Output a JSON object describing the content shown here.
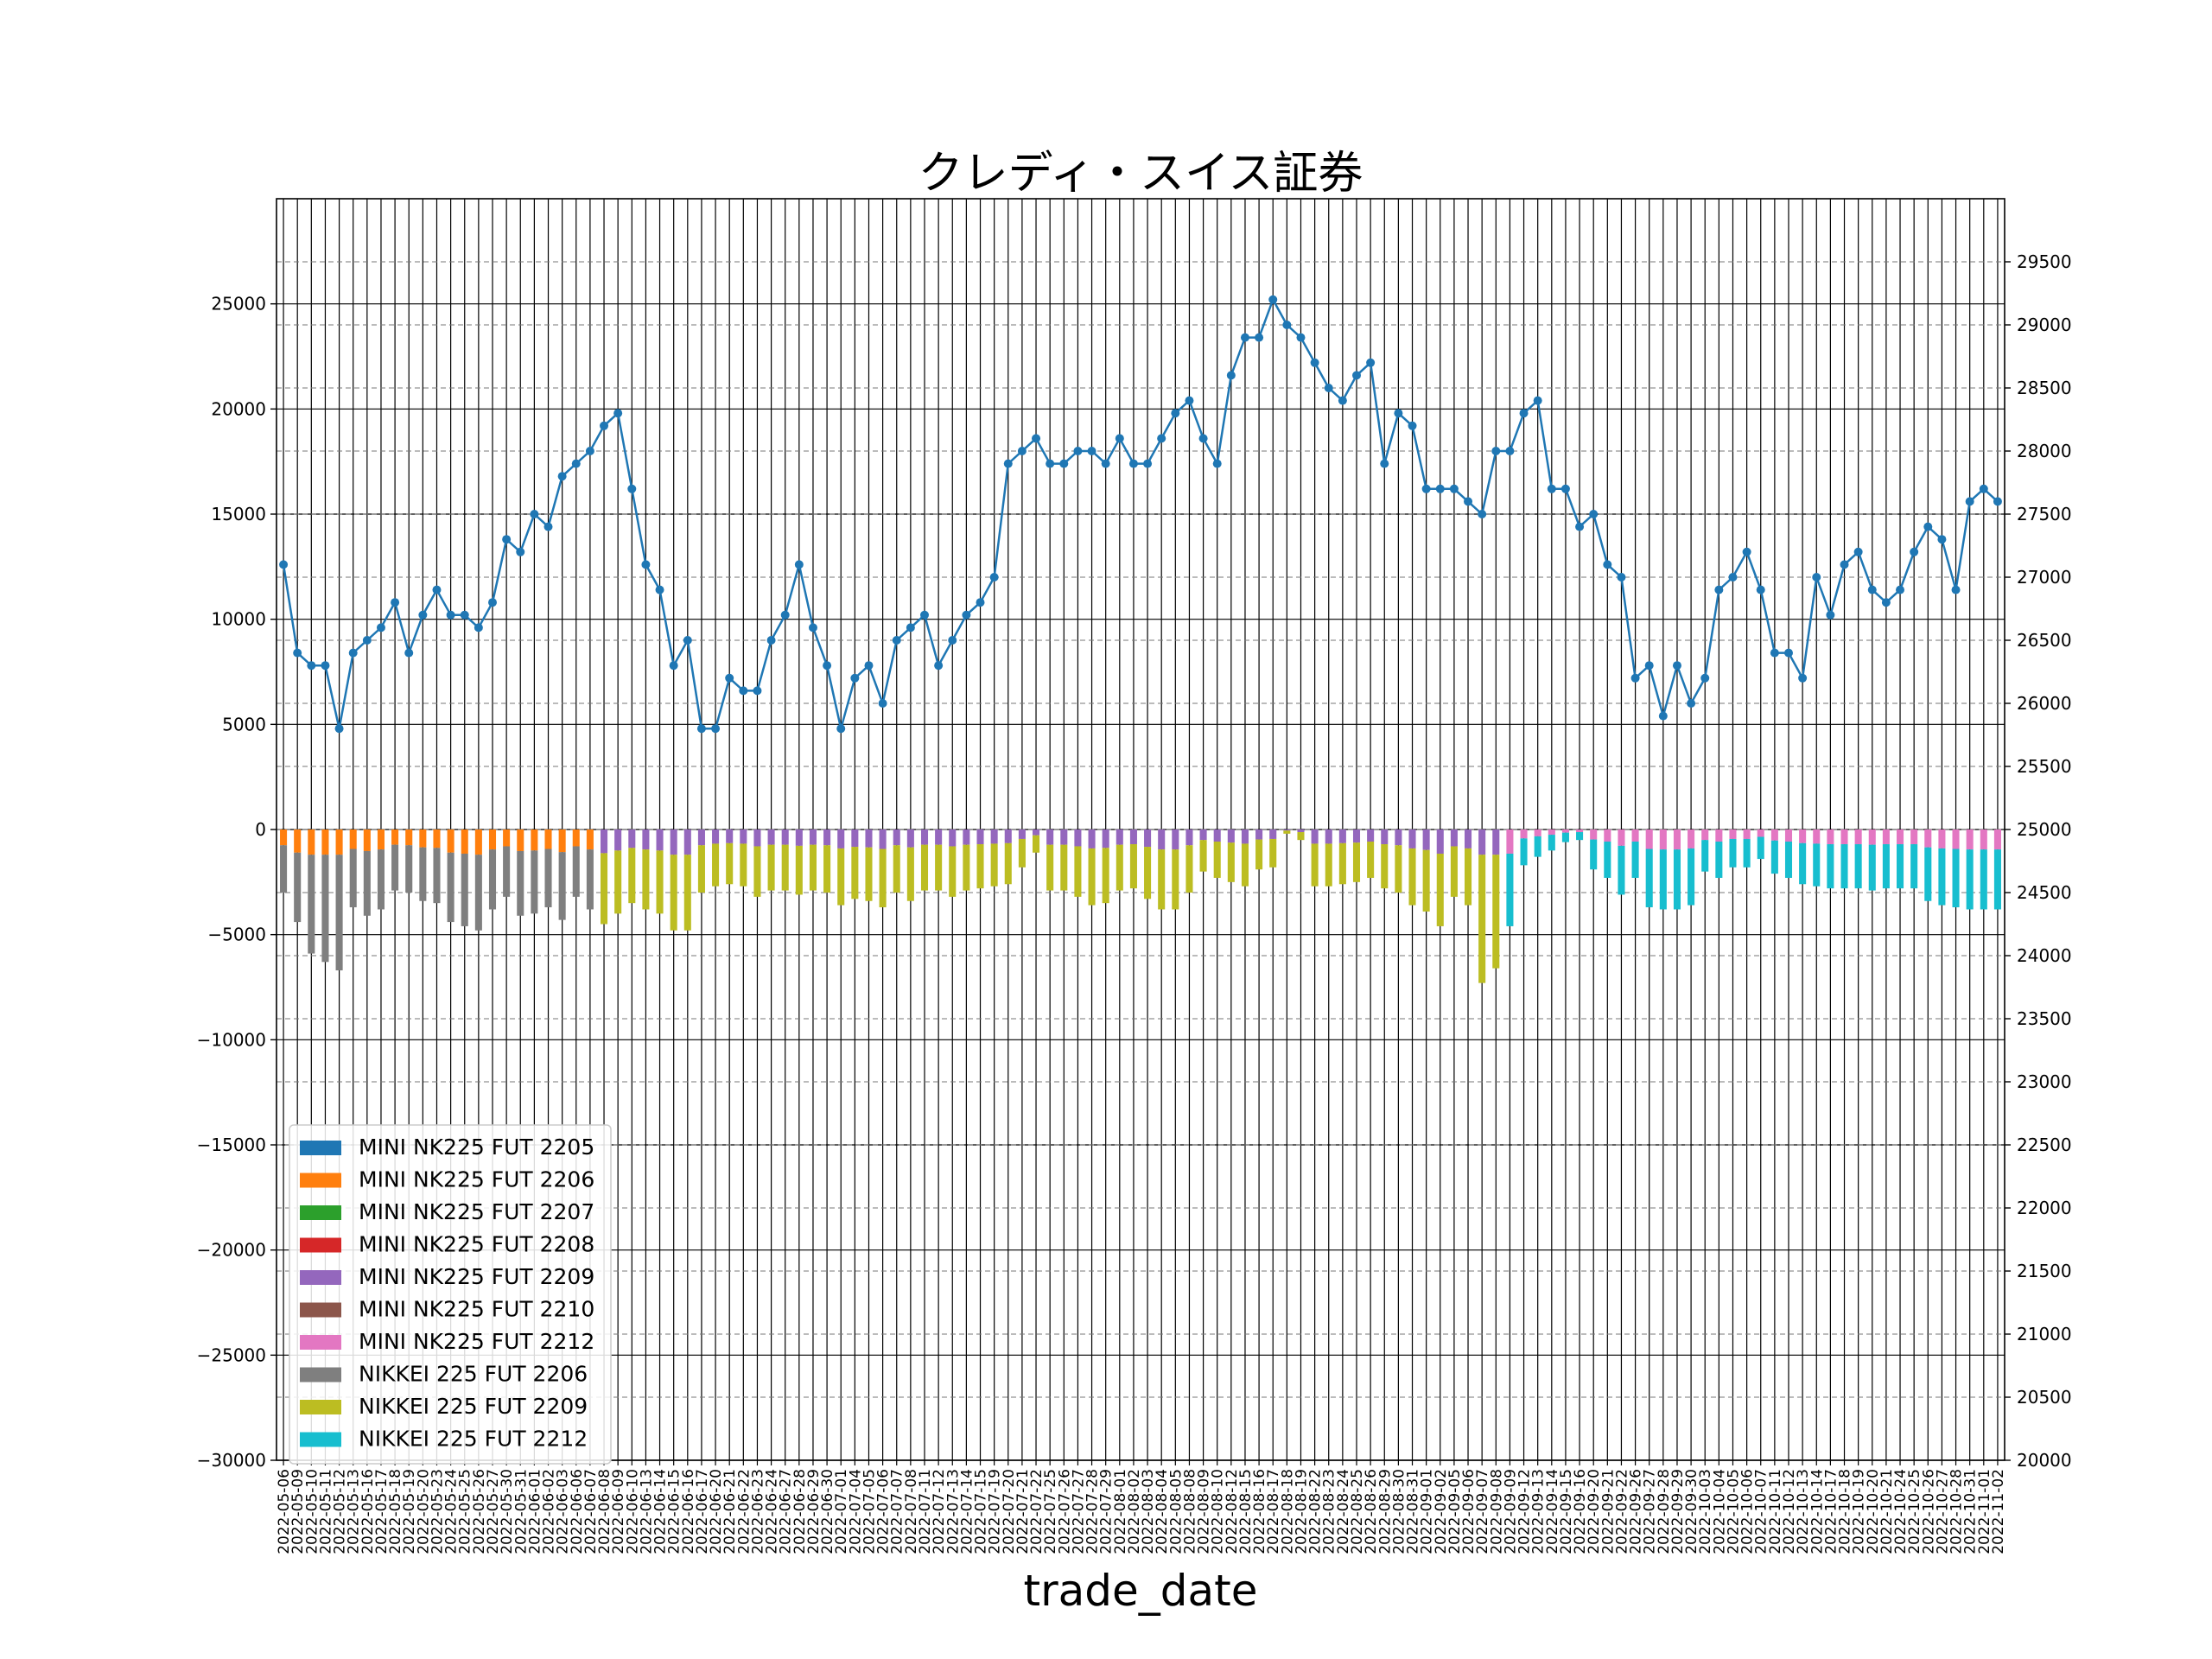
{
  "chart_data": {
    "type": "bar",
    "title": "クレディ・スイス証券",
    "xlabel": "trade_date",
    "ylabel": "",
    "ylim": [
      -30000,
      30000
    ],
    "yticks": [
      -30000,
      -25000,
      -20000,
      -15000,
      -10000,
      -5000,
      0,
      5000,
      10000,
      15000,
      20000,
      25000
    ],
    "y2lim": [
      20000,
      30000
    ],
    "y2ticks": [
      20000,
      20500,
      21000,
      21500,
      22000,
      22500,
      23000,
      23500,
      24000,
      24500,
      25000,
      25500,
      26000,
      26500,
      27000,
      27500,
      28000,
      28500,
      29000,
      29500
    ],
    "stacked": true,
    "grid": true,
    "legend_position": "lower-left",
    "dates": [
      "2022-05-06",
      "2022-05-09",
      "2022-05-10",
      "2022-05-11",
      "2022-05-12",
      "2022-05-13",
      "2022-05-16",
      "2022-05-17",
      "2022-05-18",
      "2022-05-19",
      "2022-05-20",
      "2022-05-23",
      "2022-05-24",
      "2022-05-25",
      "2022-05-26",
      "2022-05-27",
      "2022-05-30",
      "2022-05-31",
      "2022-06-01",
      "2022-06-02",
      "2022-06-03",
      "2022-06-06",
      "2022-06-07",
      "2022-06-08",
      "2022-06-09",
      "2022-06-10",
      "2022-06-13",
      "2022-06-14",
      "2022-06-15",
      "2022-06-16",
      "2022-06-17",
      "2022-06-20",
      "2022-06-21",
      "2022-06-22",
      "2022-06-23",
      "2022-06-24",
      "2022-06-27",
      "2022-06-28",
      "2022-06-29",
      "2022-06-30",
      "2022-07-01",
      "2022-07-04",
      "2022-07-05",
      "2022-07-06",
      "2022-07-07",
      "2022-07-08",
      "2022-07-11",
      "2022-07-12",
      "2022-07-13",
      "2022-07-14",
      "2022-07-15",
      "2022-07-19",
      "2022-07-20",
      "2022-07-21",
      "2022-07-22",
      "2022-07-25",
      "2022-07-26",
      "2022-07-27",
      "2022-07-28",
      "2022-07-29",
      "2022-08-01",
      "2022-08-02",
      "2022-08-03",
      "2022-08-04",
      "2022-08-05",
      "2022-08-08",
      "2022-08-09",
      "2022-08-10",
      "2022-08-12",
      "2022-08-15",
      "2022-08-16",
      "2022-08-17",
      "2022-08-18",
      "2022-08-19",
      "2022-08-22",
      "2022-08-23",
      "2022-08-24",
      "2022-08-25",
      "2022-08-26",
      "2022-08-29",
      "2022-08-30",
      "2022-08-31",
      "2022-09-01",
      "2022-09-02",
      "2022-09-05",
      "2022-09-06",
      "2022-09-07",
      "2022-09-08",
      "2022-09-09",
      "2022-09-12",
      "2022-09-13",
      "2022-09-14",
      "2022-09-15",
      "2022-09-16",
      "2022-09-20",
      "2022-09-21",
      "2022-09-22",
      "2022-09-26",
      "2022-09-27",
      "2022-09-28",
      "2022-09-29",
      "2022-09-30",
      "2022-10-03",
      "2022-10-04",
      "2022-10-05",
      "2022-10-06",
      "2022-10-07",
      "2022-10-11",
      "2022-10-12",
      "2022-10-13",
      "2022-10-14",
      "2022-10-17",
      "2022-10-18",
      "2022-10-19",
      "2022-10-20",
      "2022-10-21",
      "2022-10-24",
      "2022-10-25",
      "2022-10-26",
      "2022-10-27",
      "2022-10-28",
      "2022-10-31",
      "2022-11-01",
      "2022-11-02"
    ],
    "series": [
      {
        "name": "MINI NK225 FUT 2205",
        "color": "#1f77b4"
      },
      {
        "name": "MINI NK225 FUT 2206",
        "color": "#ff7f0e"
      },
      {
        "name": "MINI NK225 FUT 2207",
        "color": "#2ca02c"
      },
      {
        "name": "MINI NK225 FUT 2208",
        "color": "#d62728"
      },
      {
        "name": "MINI NK225 FUT 2209",
        "color": "#9467bd"
      },
      {
        "name": "MINI NK225 FUT 2210",
        "color": "#8c564b"
      },
      {
        "name": "MINI NK225 FUT 2212",
        "color": "#e377c2"
      },
      {
        "name": "NIKKEI 225 FUT 2206",
        "color": "#7f7f7f"
      },
      {
        "name": "NIKKEI 225 FUT 2209",
        "color": "#bcbd22"
      },
      {
        "name": "NIKKEI 225 FUT 2212",
        "color": "#17becf"
      }
    ],
    "bar_totals": [
      -3000,
      -4400,
      -5900,
      -6300,
      -6700,
      -3700,
      -4100,
      -3800,
      -2900,
      -3000,
      -3400,
      -3500,
      -4400,
      -4600,
      -4800,
      -3800,
      -3200,
      -4100,
      -4000,
      -3700,
      -4300,
      -3200,
      -3800,
      -4500,
      -4000,
      -3500,
      -3800,
      -4000,
      -4800,
      -4800,
      -3000,
      -2700,
      -2600,
      -2700,
      -3200,
      -2900,
      -2900,
      -3100,
      -2900,
      -3000,
      -3600,
      -3300,
      -3400,
      -3700,
      -3000,
      -3400,
      -2900,
      -2900,
      -3200,
      -2900,
      -2800,
      -2700,
      -2600,
      -1800,
      -1100,
      -2900,
      -2900,
      -3200,
      -3600,
      -3500,
      -2900,
      -2800,
      -3300,
      -3800,
      -3800,
      -3000,
      -2000,
      -2300,
      -2500,
      -2700,
      -1900,
      -1800,
      -200,
      -500,
      -2700,
      -2700,
      -2600,
      -2500,
      -2300,
      -2800,
      -3000,
      -3600,
      -3900,
      -4600,
      -3200,
      -3600,
      -7300,
      -6600,
      -4600,
      -1700,
      -1300,
      -1000,
      -600,
      -500,
      -1900,
      -2300,
      -3100,
      -2300,
      -3700,
      -3800,
      -3800,
      -3600,
      -2000,
      -2300,
      -1800,
      -1800,
      -1400,
      -2100,
      -2300,
      -2600,
      -2700,
      -2800,
      -2800,
      -2800,
      -2900,
      -2800,
      -2800,
      -2800,
      -3400,
      -3600,
      -3700,
      -3800,
      -3800,
      -3800
    ],
    "price": [
      27100,
      26400,
      26300,
      26300,
      25800,
      26400,
      26500,
      26600,
      26800,
      26400,
      26700,
      26900,
      26700,
      26700,
      26600,
      26800,
      27300,
      27200,
      27500,
      27400,
      27800,
      27900,
      28000,
      28200,
      28300,
      27700,
      27100,
      26900,
      26300,
      26500,
      25800,
      25800,
      26200,
      26100,
      26100,
      26500,
      26700,
      27100,
      26600,
      26300,
      25800,
      26200,
      26300,
      26000,
      26500,
      26600,
      26700,
      26300,
      26500,
      26700,
      26800,
      27000,
      27900,
      28000,
      28100,
      27900,
      27900,
      28000,
      28000,
      27900,
      28100,
      27900,
      27900,
      28100,
      28300,
      28400,
      28100,
      27900,
      28600,
      28900,
      28900,
      29200,
      29000,
      28900,
      28700,
      28500,
      28400,
      28600,
      28700,
      27900,
      28300,
      28200,
      27700,
      27700,
      27700,
      27600,
      27500,
      28000,
      28000,
      28300,
      28400,
      27700,
      27700,
      27400,
      27500,
      27100,
      27000,
      26200,
      26300,
      25900,
      26300,
      26000,
      26200,
      26900,
      27000,
      27200,
      26900,
      26400,
      26400,
      26200,
      27000,
      26700,
      27100,
      27200,
      26900,
      26800,
      26900,
      27200,
      27400,
      27300,
      26900,
      27600,
      27700,
      27600
    ]
  }
}
